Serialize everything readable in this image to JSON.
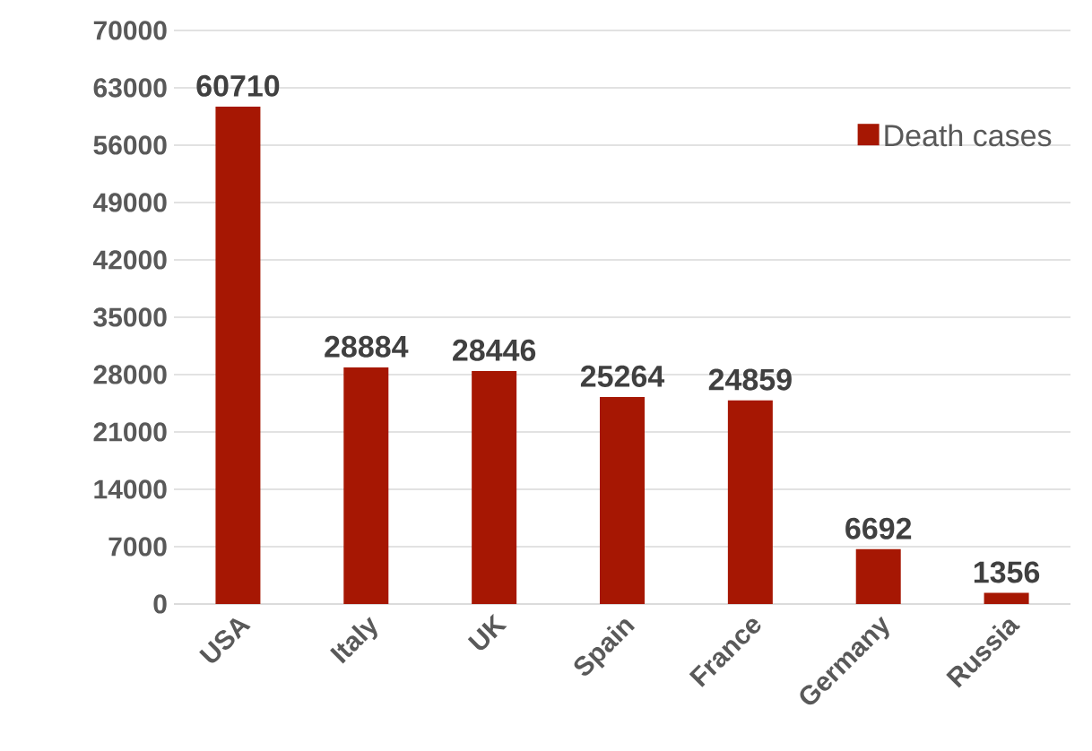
{
  "chart_data": {
    "type": "bar",
    "categories": [
      "USA",
      "Italy",
      "UK",
      "Spain",
      "France",
      "Germany",
      "Russia"
    ],
    "series": [
      {
        "name": "Death cases",
        "color": "#a61703",
        "values": [
          60710,
          28884,
          28446,
          25264,
          24859,
          6692,
          1356
        ]
      }
    ],
    "ylim": [
      0,
      70000
    ],
    "yticks": [
      0,
      7000,
      14000,
      21000,
      28000,
      35000,
      42000,
      49000,
      56000,
      63000,
      70000
    ],
    "grid": "y",
    "legend": "top right",
    "data_labels": true
  }
}
